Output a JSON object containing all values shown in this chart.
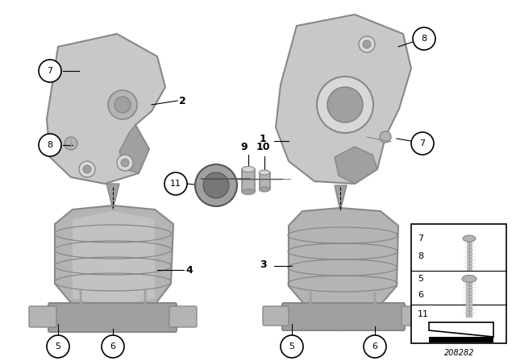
{
  "background_color": "#ffffff",
  "fig_width": 6.4,
  "fig_height": 4.48,
  "dpi": 100,
  "part_id": "208282",
  "gray_bracket": "#c8c8c8",
  "gray_dark": "#a0a0a0",
  "gray_mid": "#b4b4b4",
  "gray_light": "#d8d8d8",
  "gray_edge": "#888888",
  "black": "#000000",
  "white": "#ffffff"
}
